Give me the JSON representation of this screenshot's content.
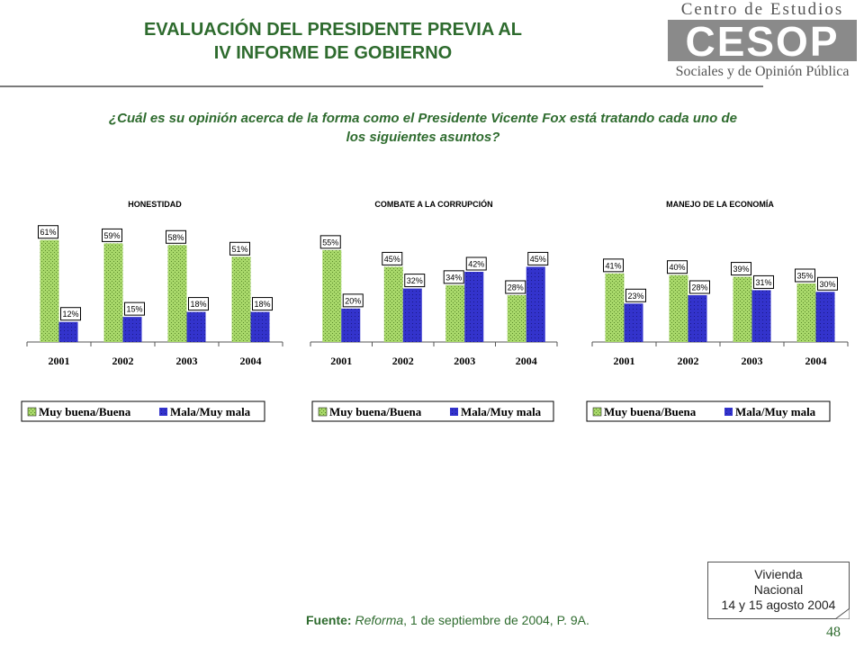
{
  "header": {
    "title_line1": "EVALUACIÓN DEL PRESIDENTE PREVIA AL",
    "title_line2": "IV INFORME DE GOBIERNO"
  },
  "logo": {
    "top_text": "Centro de Estudios",
    "mark_text": "CESOP",
    "bottom_text": "Sociales y de Opinión Pública"
  },
  "question": {
    "line1": "¿Cuál es su opinión acerca de la forma como el Presidente Vicente Fox está tratando cada uno de",
    "line2": "los siguientes asuntos?"
  },
  "colors": {
    "title_green": "#2E6B2E",
    "buena_green": "#A8D86A",
    "mala_blue": "#3333CC"
  },
  "chart_data": [
    {
      "type": "bar",
      "title": "HONESTIDAD",
      "categories": [
        "2001",
        "2002",
        "2003",
        "2004"
      ],
      "series": [
        {
          "name": "Muy buena/Buena",
          "values": [
            61,
            59,
            58,
            51
          ]
        },
        {
          "name": "Mala/Muy mala",
          "values": [
            12,
            15,
            18,
            18
          ]
        }
      ],
      "ylim": [
        0,
        70
      ],
      "legend_position": "bottom"
    },
    {
      "type": "bar",
      "title": "COMBATE A LA CORRUPCIÓN",
      "categories": [
        "2001",
        "2002",
        "2003",
        "2004"
      ],
      "series": [
        {
          "name": "Muy buena/Buena",
          "values": [
            55,
            45,
            34,
            28
          ]
        },
        {
          "name": "Mala/Muy mala",
          "values": [
            20,
            32,
            42,
            45
          ]
        }
      ],
      "ylim": [
        0,
        70
      ],
      "legend_position": "bottom"
    },
    {
      "type": "bar",
      "title": "MANEJO DE LA ECONOMÍA",
      "categories": [
        "2001",
        "2002",
        "2003",
        "2004"
      ],
      "series": [
        {
          "name": "Muy buena/Buena",
          "values": [
            41,
            40,
            39,
            35
          ]
        },
        {
          "name": "Mala/Muy mala",
          "values": [
            23,
            28,
            31,
            30
          ]
        }
      ],
      "ylim": [
        0,
        70
      ],
      "legend_position": "bottom"
    }
  ],
  "source": {
    "label": "Fuente:",
    "publication": "Reforma",
    "detail": ", 1 de septiembre de 2004,  P. 9A."
  },
  "note": {
    "line1": "Vivienda",
    "line2": "Nacional",
    "line3": "14 y 15 agosto 2004"
  },
  "page_number": "48"
}
